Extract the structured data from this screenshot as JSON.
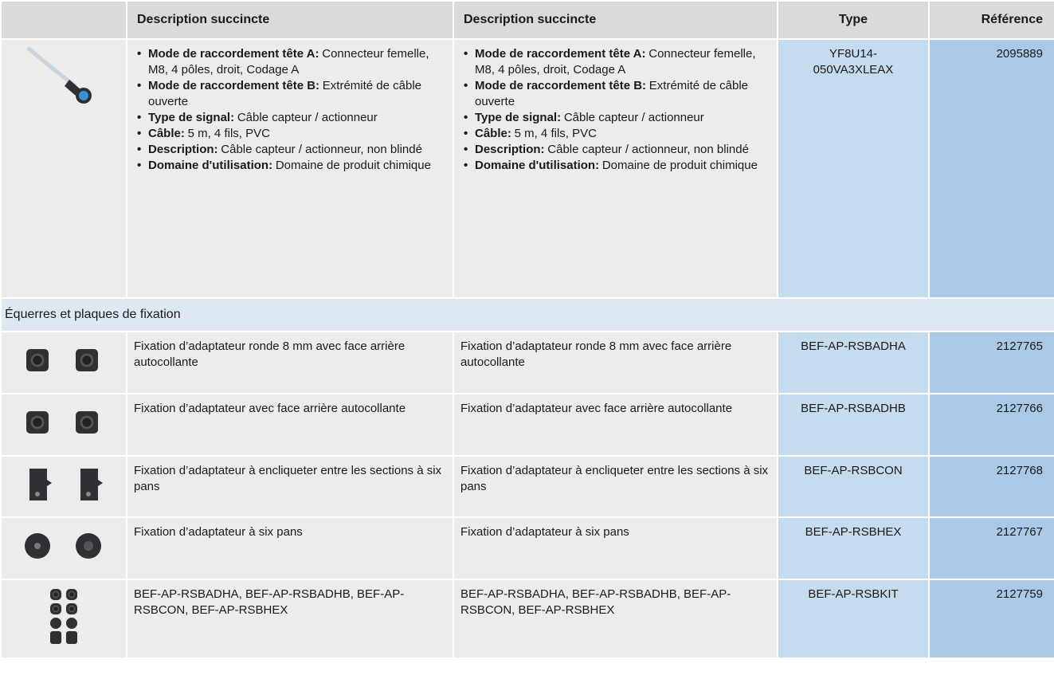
{
  "table": {
    "header": [
      "Description succincte",
      "Description succincte",
      "Type",
      "Référence"
    ],
    "product": {
      "description_1": [
        {
          "label": "Mode de raccordement tête A:",
          "text": "Connecteur femelle, M8, 4 pôles, droit, Codage A"
        },
        {
          "label": "Mode de raccordement tête B:",
          "text": "Extrémité de câble ouverte"
        },
        {
          "label": "Type de signal:",
          "text": "Câble capteur / actionneur"
        },
        {
          "label": "Câble:",
          "text": "5 m, 4 fils, PVC"
        },
        {
          "label": "Description:",
          "text": "Câble capteur / actionneur, non blindé"
        },
        {
          "label": "Domaine d'utilisation:",
          "text": "Domaine de produit chimique"
        }
      ],
      "description_2": [
        {
          "label": "Mode de raccordement tête A:",
          "text": "Connecteur femelle, M8, 4 pôles, droit, Codage A"
        },
        {
          "label": "Mode de raccordement tête B:",
          "text": "Extrémité de câble ouverte"
        },
        {
          "label": "Type de signal:",
          "text": "Câble capteur / actionneur"
        },
        {
          "label": "Câble:",
          "text": "5 m, 4 fils, PVC"
        },
        {
          "label": "Description:",
          "text": "Câble capteur / actionneur, non blindé"
        },
        {
          "label": "Domaine d'utilisation:",
          "text": "Domaine de produit chimique"
        }
      ],
      "type": "YF8U14-050VA3XLEAX",
      "reference": "2095889"
    },
    "section": "Équerres et plaques de fixation",
    "rows": [
      [
        "Fixation d’adaptateur ronde 8 mm avec face arrière autocollante",
        "Fixation d’adaptateur ronde 8 mm avec face arrière autocollante",
        "BEF-AP-RSBADHA",
        "2127765"
      ],
      [
        "Fixation d’adaptateur avec face arrière autocollante",
        "Fixation d’adaptateur avec face arrière autocollante",
        "BEF-AP-RSBADHB",
        "2127766"
      ],
      [
        "Fixation d’adaptateur à encliqueter entre les sections à six pans",
        "Fixation d’adaptateur à encliqueter entre les sections à six pans",
        "BEF-AP-RSBCON",
        "2127768"
      ],
      [
        "Fixation d’adaptateur à six pans",
        "Fixation d’adaptateur à six pans",
        "BEF-AP-RSBHEX",
        "2127767"
      ],
      [
        "BEF-AP-RSBADHA, BEF-AP-RSBADHB, BEF-AP-RSBCON, BEF-AP-RSBHEX",
        "BEF-AP-RSBADHA, BEF-AP-RSBADHB, BEF-AP-RSBCON, BEF-AP-RSBHEX",
        "BEF-AP-RSBKIT",
        "2127759"
      ]
    ]
  }
}
